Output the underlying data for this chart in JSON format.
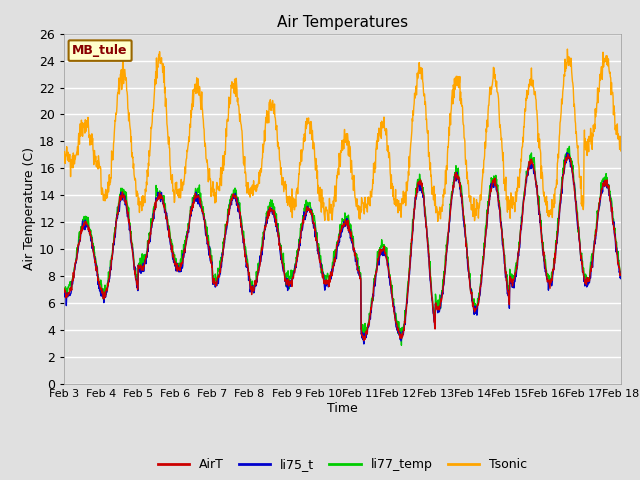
{
  "title": "Air Temperatures",
  "xlabel": "Time",
  "ylabel": "Air Temperature (C)",
  "ylim": [
    0,
    26
  ],
  "yticks": [
    0,
    2,
    4,
    6,
    8,
    10,
    12,
    14,
    16,
    18,
    20,
    22,
    24,
    26
  ],
  "xtick_labels": [
    "Feb 3",
    "Feb 4",
    "Feb 5",
    "Feb 6",
    "Feb 7",
    "Feb 8",
    "Feb 9",
    "Feb 10",
    "Feb 11",
    "Feb 12",
    "Feb 13",
    "Feb 14",
    "Feb 15",
    "Feb 16",
    "Feb 17",
    "Feb 18"
  ],
  "series_colors": {
    "AirT": "#cc0000",
    "li75_t": "#0000cc",
    "li77_temp": "#00cc00",
    "Tsonic": "#ffa500"
  },
  "legend_label": "MB_tule",
  "legend_box_facecolor": "#ffffcc",
  "legend_box_edgecolor": "#996600",
  "fig_facecolor": "#e0e0e0",
  "plot_facecolor": "#e0e0e0",
  "grid_color": "#ffffff",
  "title_fontsize": 11,
  "axis_label_fontsize": 9,
  "tick_fontsize": 9,
  "legend_fontsize": 9
}
